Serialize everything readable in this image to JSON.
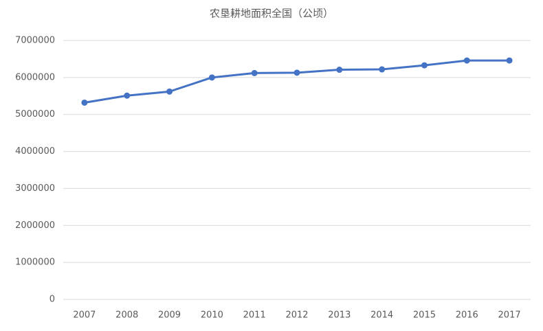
{
  "chart_data": {
    "type": "line",
    "title": "农垦耕地面积全国（公顷）",
    "categories": [
      "2007",
      "2008",
      "2009",
      "2010",
      "2011",
      "2012",
      "2013",
      "2014",
      "2015",
      "2016",
      "2017"
    ],
    "series": [
      {
        "name": "农垦耕地面积全国",
        "color": "#4472c4",
        "values": [
          5320000,
          5510000,
          5620000,
          6000000,
          6120000,
          6130000,
          6210000,
          6220000,
          6330000,
          6460000,
          6460000
        ]
      }
    ],
    "ylim": [
      0,
      7000000
    ],
    "yticks": [
      0,
      1000000,
      2000000,
      3000000,
      4000000,
      5000000,
      6000000,
      7000000
    ],
    "grid": true
  }
}
